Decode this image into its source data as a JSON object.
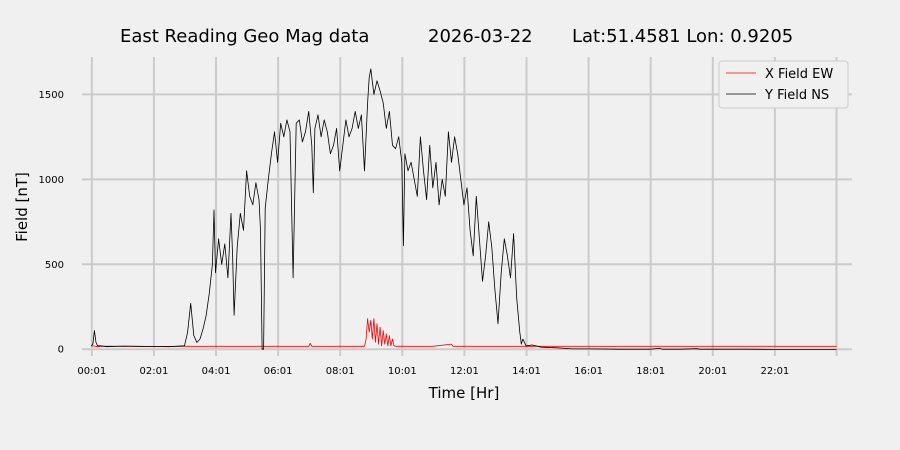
{
  "chart_data": {
    "type": "line",
    "title_parts": [
      "East Reading Geo Mag data",
      "2026-03-22",
      "Lat:51.4581  Lon: 0.9205"
    ],
    "xlabel": "Time  [Hr]",
    "ylabel": "Field  [nT]",
    "xlim": [
      -0.3,
      24.5
    ],
    "ylim": [
      -40,
      1720
    ],
    "grid": true,
    "legend_position": "top-right",
    "x_ticks": [
      {
        "x": 0.0167,
        "label": "00:01"
      },
      {
        "x": 2.0167,
        "label": "02:01"
      },
      {
        "x": 4.0167,
        "label": "04:01"
      },
      {
        "x": 6.0167,
        "label": "06:01"
      },
      {
        "x": 8.0167,
        "label": "08:01"
      },
      {
        "x": 10.0167,
        "label": "10:01"
      },
      {
        "x": 12.0167,
        "label": "12:01"
      },
      {
        "x": 14.0167,
        "label": "14:01"
      },
      {
        "x": 16.0167,
        "label": "16:01"
      },
      {
        "x": 18.0167,
        "label": "18:01"
      },
      {
        "x": 20.0167,
        "label": "20:01"
      },
      {
        "x": 22.0167,
        "label": "22:01"
      }
    ],
    "extra_gridlines_x": [
      24.0
    ],
    "y_ticks": [
      0,
      500,
      1000,
      1500
    ],
    "series": [
      {
        "name": "X Field EW",
        "color": "#ff0000",
        "points": [
          [
            0.0,
            20
          ],
          [
            0.1,
            18
          ],
          [
            0.2,
            15
          ],
          [
            0.3,
            17
          ],
          [
            0.5,
            18
          ],
          [
            1.0,
            17
          ],
          [
            2.0,
            16
          ],
          [
            3.0,
            17
          ],
          [
            4.0,
            17
          ],
          [
            5.0,
            17
          ],
          [
            6.0,
            17
          ],
          [
            7.0,
            17
          ],
          [
            7.05,
            35
          ],
          [
            7.1,
            17
          ],
          [
            8.0,
            17
          ],
          [
            8.8,
            17
          ],
          [
            8.85,
            60
          ],
          [
            8.9,
            180
          ],
          [
            8.95,
            100
          ],
          [
            9.0,
            170
          ],
          [
            9.05,
            60
          ],
          [
            9.1,
            180
          ],
          [
            9.15,
            40
          ],
          [
            9.2,
            150
          ],
          [
            9.25,
            30
          ],
          [
            9.3,
            130
          ],
          [
            9.35,
            20
          ],
          [
            9.4,
            110
          ],
          [
            9.45,
            30
          ],
          [
            9.5,
            90
          ],
          [
            9.55,
            20
          ],
          [
            9.6,
            80
          ],
          [
            9.65,
            20
          ],
          [
            9.7,
            60
          ],
          [
            9.75,
            20
          ],
          [
            9.8,
            17
          ],
          [
            10.0,
            17
          ],
          [
            11.0,
            17
          ],
          [
            11.6,
            30
          ],
          [
            11.65,
            17
          ],
          [
            12.0,
            17
          ],
          [
            13.0,
            17
          ],
          [
            14.0,
            17
          ],
          [
            15.0,
            17
          ],
          [
            16.0,
            17
          ],
          [
            17.0,
            17
          ],
          [
            18.0,
            17
          ],
          [
            19.0,
            17
          ],
          [
            20.0,
            17
          ],
          [
            21.0,
            17
          ],
          [
            22.0,
            17
          ],
          [
            23.0,
            17
          ],
          [
            24.0,
            17
          ]
        ]
      },
      {
        "name": "Y Field NS",
        "color": "#000000",
        "points": [
          [
            0.0,
            20
          ],
          [
            0.05,
            30
          ],
          [
            0.1,
            110
          ],
          [
            0.15,
            40
          ],
          [
            0.2,
            20
          ],
          [
            0.3,
            20
          ],
          [
            0.5,
            15
          ],
          [
            1.0,
            18
          ],
          [
            1.5,
            17
          ],
          [
            2.0,
            16
          ],
          [
            2.5,
            15
          ],
          [
            3.0,
            20
          ],
          [
            3.1,
            100
          ],
          [
            3.2,
            270
          ],
          [
            3.3,
            80
          ],
          [
            3.4,
            40
          ],
          [
            3.5,
            60
          ],
          [
            3.6,
            120
          ],
          [
            3.7,
            200
          ],
          [
            3.8,
            330
          ],
          [
            3.9,
            500
          ],
          [
            3.95,
            820
          ],
          [
            4.0,
            450
          ],
          [
            4.1,
            650
          ],
          [
            4.2,
            500
          ],
          [
            4.3,
            620
          ],
          [
            4.4,
            420
          ],
          [
            4.5,
            800
          ],
          [
            4.55,
            550
          ],
          [
            4.6,
            200
          ],
          [
            4.7,
            600
          ],
          [
            4.8,
            800
          ],
          [
            4.9,
            700
          ],
          [
            5.0,
            1050
          ],
          [
            5.1,
            900
          ],
          [
            5.2,
            850
          ],
          [
            5.3,
            980
          ],
          [
            5.4,
            880
          ],
          [
            5.45,
            700
          ],
          [
            5.5,
            0
          ],
          [
            5.55,
            0
          ],
          [
            5.6,
            830
          ],
          [
            5.7,
            1000
          ],
          [
            5.8,
            1150
          ],
          [
            5.9,
            1280
          ],
          [
            6.0,
            1100
          ],
          [
            6.1,
            1330
          ],
          [
            6.2,
            1250
          ],
          [
            6.3,
            1350
          ],
          [
            6.4,
            1280
          ],
          [
            6.5,
            420
          ],
          [
            6.6,
            1330
          ],
          [
            6.7,
            1350
          ],
          [
            6.8,
            1220
          ],
          [
            6.9,
            1280
          ],
          [
            7.0,
            1400
          ],
          [
            7.1,
            1200
          ],
          [
            7.15,
            920
          ],
          [
            7.2,
            1300
          ],
          [
            7.3,
            1380
          ],
          [
            7.4,
            1250
          ],
          [
            7.5,
            1350
          ],
          [
            7.6,
            1280
          ],
          [
            7.7,
            1150
          ],
          [
            7.8,
            1200
          ],
          [
            7.9,
            1300
          ],
          [
            8.0,
            1050
          ],
          [
            8.1,
            1200
          ],
          [
            8.2,
            1350
          ],
          [
            8.3,
            1250
          ],
          [
            8.4,
            1300
          ],
          [
            8.5,
            1400
          ],
          [
            8.6,
            1300
          ],
          [
            8.7,
            1380
          ],
          [
            8.8,
            1050
          ],
          [
            8.9,
            1450
          ],
          [
            8.95,
            1600
          ],
          [
            9.0,
            1650
          ],
          [
            9.1,
            1500
          ],
          [
            9.2,
            1580
          ],
          [
            9.3,
            1520
          ],
          [
            9.4,
            1450
          ],
          [
            9.5,
            1300
          ],
          [
            9.6,
            1400
          ],
          [
            9.7,
            1200
          ],
          [
            9.8,
            1180
          ],
          [
            9.9,
            1250
          ],
          [
            10.0,
            1100
          ],
          [
            10.05,
            610
          ],
          [
            10.1,
            1150
          ],
          [
            10.2,
            1050
          ],
          [
            10.3,
            1100
          ],
          [
            10.4,
            1000
          ],
          [
            10.5,
            900
          ],
          [
            10.6,
            1250
          ],
          [
            10.7,
            1050
          ],
          [
            10.8,
            880
          ],
          [
            10.9,
            1200
          ],
          [
            11.0,
            950
          ],
          [
            11.1,
            1100
          ],
          [
            11.2,
            850
          ],
          [
            11.3,
            1000
          ],
          [
            11.4,
            900
          ],
          [
            11.5,
            1280
          ],
          [
            11.6,
            1100
          ],
          [
            11.7,
            1250
          ],
          [
            11.8,
            1150
          ],
          [
            11.9,
            1000
          ],
          [
            12.0,
            850
          ],
          [
            12.1,
            950
          ],
          [
            12.2,
            700
          ],
          [
            12.3,
            550
          ],
          [
            12.4,
            900
          ],
          [
            12.5,
            650
          ],
          [
            12.6,
            400
          ],
          [
            12.7,
            550
          ],
          [
            12.8,
            750
          ],
          [
            12.9,
            600
          ],
          [
            13.0,
            350
          ],
          [
            13.1,
            150
          ],
          [
            13.2,
            450
          ],
          [
            13.3,
            650
          ],
          [
            13.4,
            550
          ],
          [
            13.5,
            420
          ],
          [
            13.6,
            680
          ],
          [
            13.7,
            300
          ],
          [
            13.8,
            100
          ],
          [
            13.85,
            30
          ],
          [
            13.9,
            60
          ],
          [
            14.0,
            20
          ],
          [
            14.2,
            25
          ],
          [
            14.5,
            12
          ],
          [
            15.0,
            8
          ],
          [
            15.5,
            2
          ],
          [
            16.0,
            2
          ],
          [
            17.0,
            0
          ],
          [
            18.0,
            0
          ],
          [
            18.3,
            5
          ],
          [
            18.4,
            0
          ],
          [
            19.0,
            0
          ],
          [
            19.5,
            3
          ],
          [
            19.6,
            0
          ],
          [
            20.0,
            0
          ],
          [
            21.0,
            0
          ],
          [
            22.0,
            -1
          ],
          [
            23.0,
            -1
          ],
          [
            24.0,
            -1
          ]
        ]
      }
    ]
  }
}
